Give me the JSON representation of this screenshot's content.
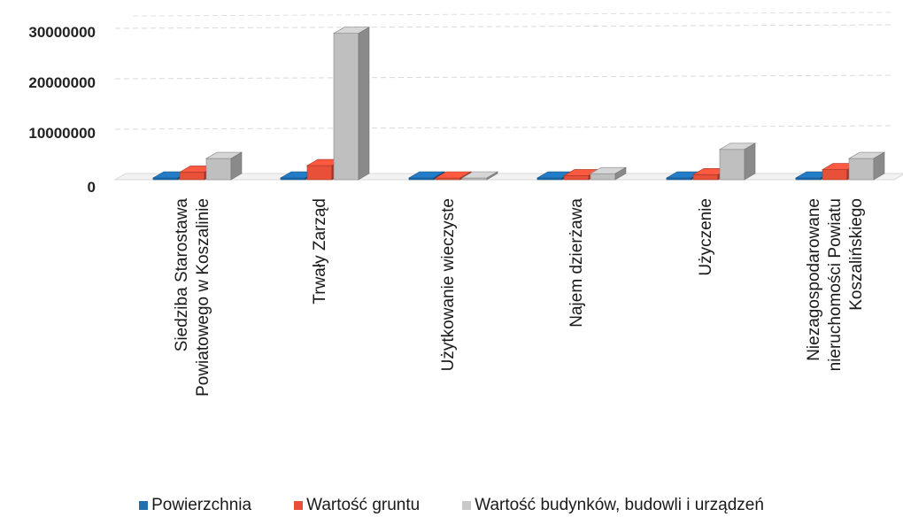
{
  "chart_data": {
    "type": "bar",
    "categories": [
      [
        "Siedziba Starostawa",
        "Powiatowego w Koszalinie"
      ],
      [
        "Trwały Zarząd"
      ],
      [
        "Użytkowanie wieczyste"
      ],
      [
        "Najem dzierżawa"
      ],
      [
        "Użyczenie"
      ],
      [
        "Niezagospodarowane",
        "nieruchomości Powiatu",
        "Koszalińskiego"
      ]
    ],
    "series": [
      {
        "name": "Powierzchnia",
        "color": "#1f6fb2",
        "values": [
          50000,
          40000,
          5000,
          20000,
          20000,
          30000
        ]
      },
      {
        "name": "Wartość gruntu",
        "color": "#e8503a",
        "values": [
          1500000,
          2800000,
          200000,
          800000,
          1000000,
          2000000
        ]
      },
      {
        "name": "Wartość budynków, budowli i urządzeń",
        "color": "#bfbfbf",
        "values": [
          4200000,
          29000000,
          100000,
          1200000,
          6000000,
          4200000
        ]
      }
    ],
    "y_ticks": [
      "0",
      "10000000",
      "20000000",
      "30000000"
    ],
    "ylim": [
      0,
      34000000
    ],
    "title": "",
    "xlabel": "",
    "ylabel": "",
    "grid": true,
    "legend_position": "bottom",
    "style": "3d-columns"
  }
}
